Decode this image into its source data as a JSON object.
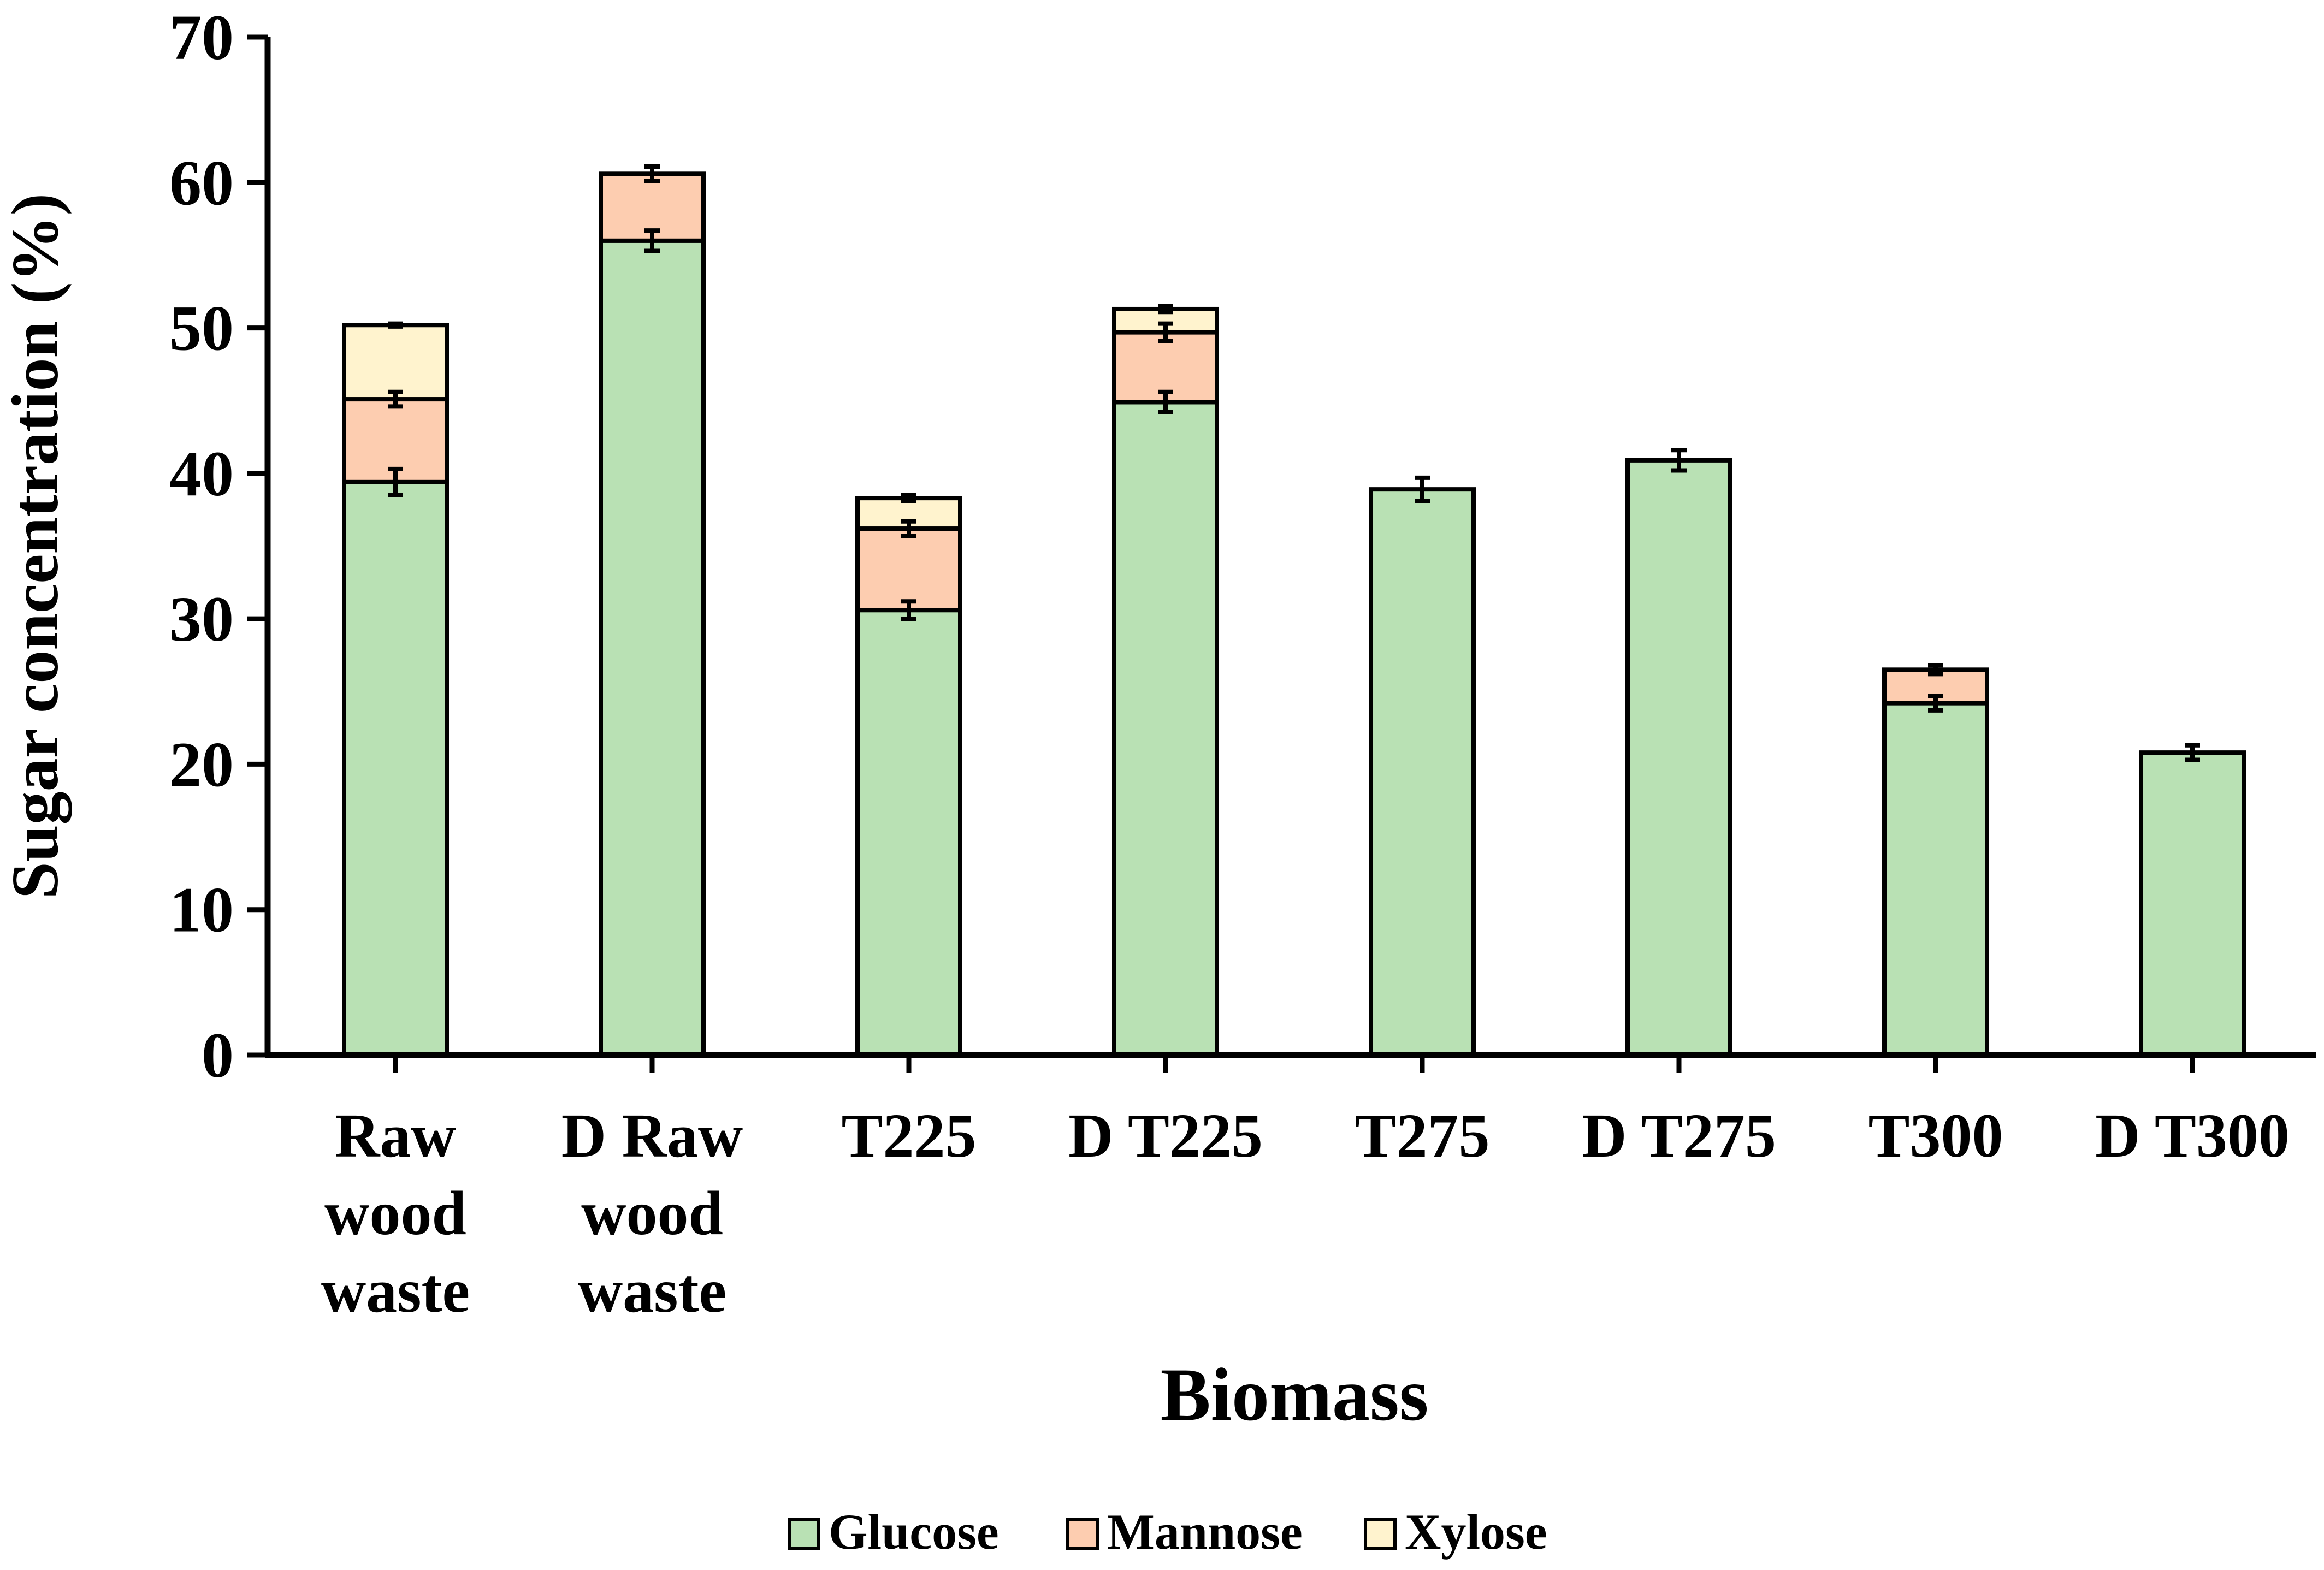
{
  "chart_data": {
    "type": "bar",
    "stacked": true,
    "title": "",
    "xlabel": "Biomass",
    "ylabel": "Sugar concentration (%)",
    "ylim": [
      0,
      70
    ],
    "yticks": [
      "0",
      "10",
      "20",
      "30",
      "40",
      "50",
      "60",
      "70"
    ],
    "categories": [
      [
        "Raw",
        "wood",
        "waste"
      ],
      [
        "D Raw",
        "wood",
        "waste"
      ],
      [
        "T225"
      ],
      [
        "D T225"
      ],
      [
        "T275"
      ],
      [
        "D T275"
      ],
      [
        "T300"
      ],
      [
        "D T300"
      ]
    ],
    "series": [
      {
        "name": "Glucose",
        "color": "#b9e1b4",
        "values": [
          39.4,
          56.0,
          30.6,
          44.9,
          38.9,
          40.9,
          24.2,
          20.8
        ],
        "errors": [
          0.9,
          0.7,
          0.6,
          0.7,
          0.8,
          0.7,
          0.5,
          0.5
        ]
      },
      {
        "name": "Mannose",
        "color": "#fdcdb0",
        "values": [
          5.7,
          4.6,
          5.6,
          4.8,
          0,
          0,
          2.3,
          0
        ],
        "errors": [
          0.5,
          0.5,
          0.5,
          0.6,
          0,
          0,
          0.3,
          0
        ]
      },
      {
        "name": "Xylose",
        "color": "#fff3ce",
        "values": [
          5.1,
          0,
          2.1,
          1.6,
          0,
          0,
          0,
          0
        ],
        "errors": [
          0.1,
          0,
          0.2,
          0.2,
          0,
          0,
          0,
          0
        ]
      }
    ],
    "legend_position": "bottom-center"
  }
}
